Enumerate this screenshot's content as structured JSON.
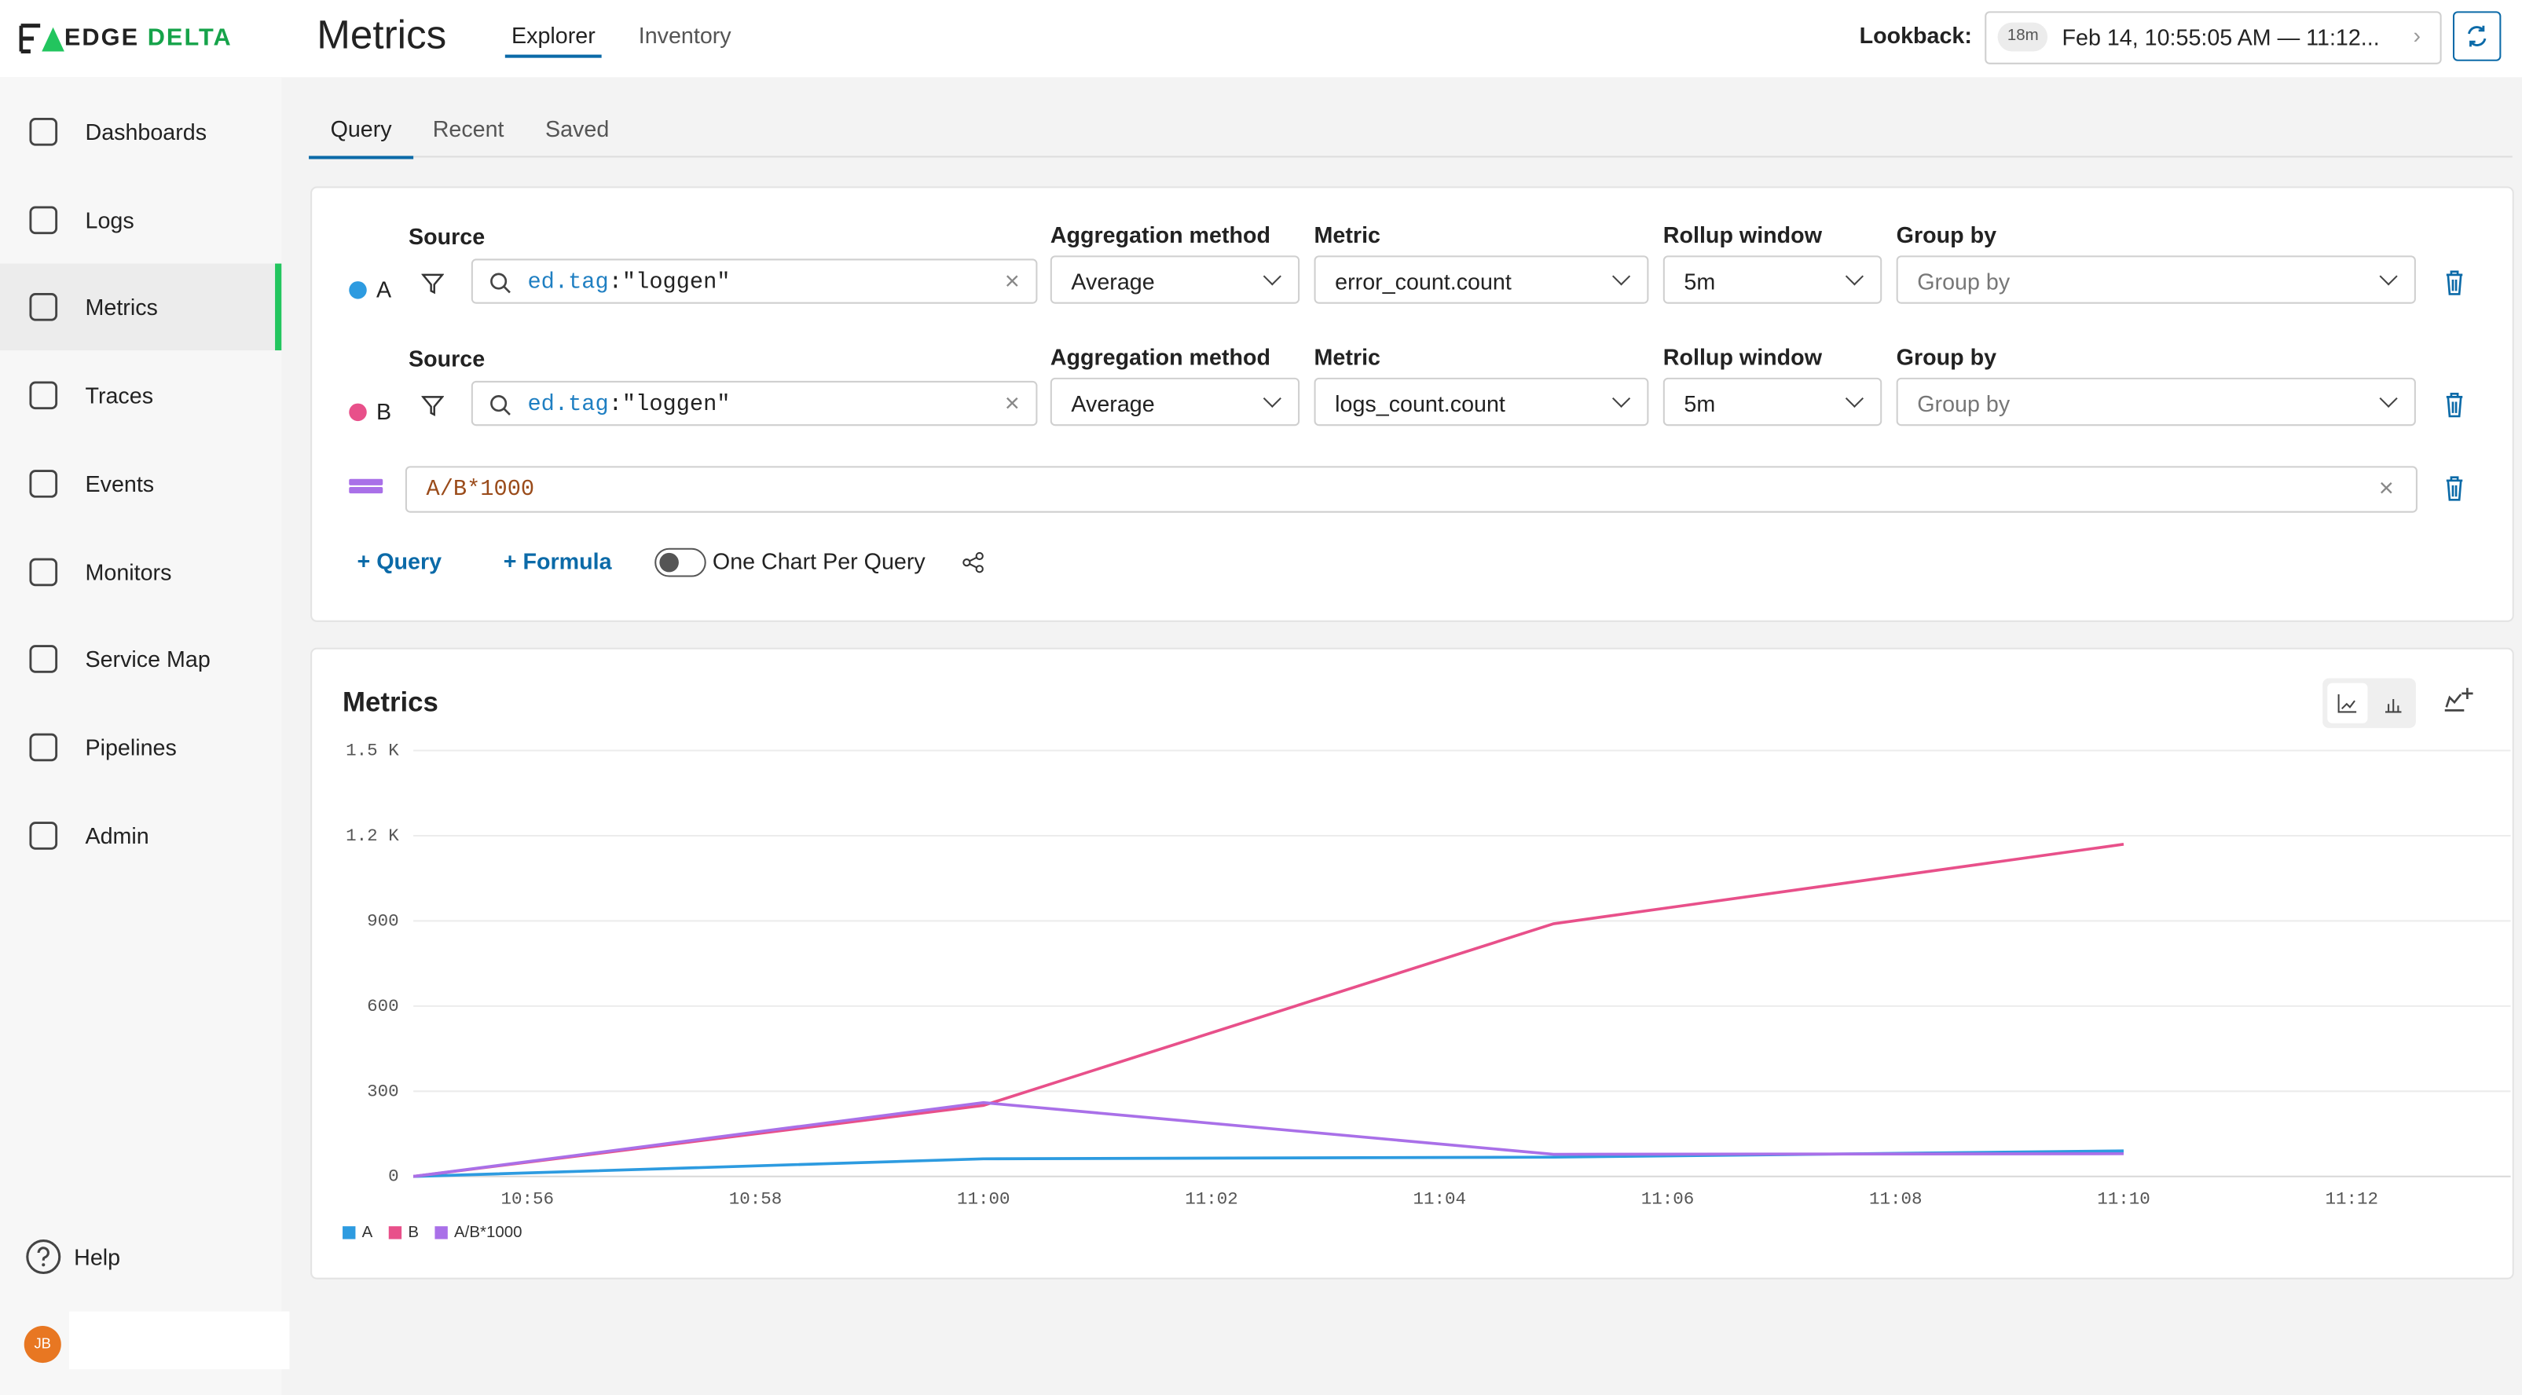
{
  "brand": {
    "left": "EDGE",
    "right": "DELTA"
  },
  "header": {
    "title": "Metrics",
    "tabs": [
      "Explorer",
      "Inventory"
    ],
    "lookback_label": "Lookback:",
    "lookback_badge": "18m",
    "lookback_range": "Feb 14, 10:55:05 AM — 11:12..."
  },
  "sidebar": {
    "items": [
      "Dashboards",
      "Logs",
      "Metrics",
      "Traces",
      "Events",
      "Monitors",
      "Service Map",
      "Pipelines",
      "Admin"
    ],
    "active": "Metrics",
    "help": "Help",
    "avatar": "JB"
  },
  "query_tabs": [
    "Query",
    "Recent",
    "Saved"
  ],
  "queries": [
    {
      "id": "A",
      "color": "#2d9be0",
      "source_label": "Source",
      "source_key": "ed.tag",
      "source_sep": ":",
      "source_value": "\"loggen\"",
      "aggregation_label": "Aggregation method",
      "aggregation": "Average",
      "metric_label": "Metric",
      "metric": "error_count.count",
      "rollup_label": "Rollup window",
      "rollup": "5m",
      "group_label": "Group by",
      "group_placeholder": "Group by"
    },
    {
      "id": "B",
      "color": "#e8508a",
      "source_label": "Source",
      "source_key": "ed.tag",
      "source_sep": ":",
      "source_value": "\"loggen\"",
      "aggregation_label": "Aggregation method",
      "aggregation": "Average",
      "metric_label": "Metric",
      "metric": "logs_count.count",
      "rollup_label": "Rollup window",
      "rollup": "5m",
      "group_label": "Group by",
      "group_placeholder": "Group by"
    }
  ],
  "formula": {
    "expression": "A/B*1000"
  },
  "actions": {
    "add_query": "Query",
    "add_formula": "Formula",
    "toggle": "One Chart Per Query"
  },
  "chart_data": {
    "type": "line",
    "title": "Metrics",
    "x": [
      "10:55",
      "11:00",
      "11:05",
      "11:10"
    ],
    "xlim": [
      "10:55",
      "11:13"
    ],
    "xticks": [
      "10:56",
      "10:58",
      "11:00",
      "11:02",
      "11:04",
      "11:06",
      "11:08",
      "11:10",
      "11:12"
    ],
    "ylim": [
      0,
      1500
    ],
    "yticks": [
      0,
      300,
      600,
      900,
      {
        "value": 1200,
        "label": "1.2 K"
      },
      {
        "value": 1500,
        "label": "1.5 K"
      }
    ],
    "grid": true,
    "legend": "bottom-left",
    "series": [
      {
        "name": "A",
        "color": "#2d9be0",
        "values": [
          0,
          62,
          68,
          90
        ]
      },
      {
        "name": "B",
        "color": "#e8508a",
        "values": [
          0,
          250,
          890,
          1170
        ]
      },
      {
        "name": "A/B*1000",
        "color": "#a970e8",
        "values": [
          0,
          260,
          78,
          80
        ]
      }
    ]
  }
}
